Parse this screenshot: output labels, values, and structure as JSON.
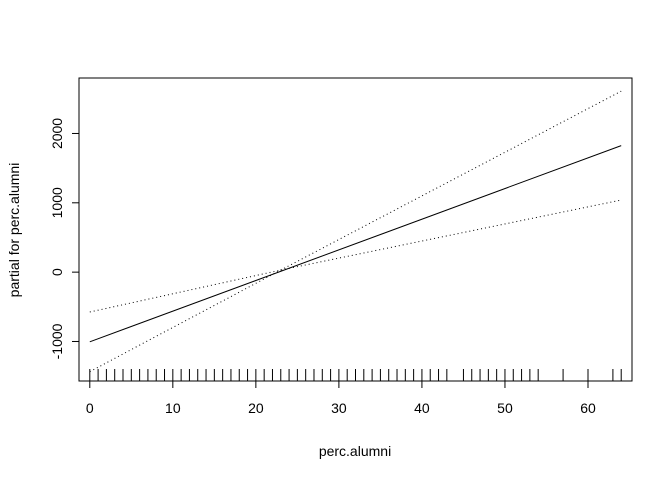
{
  "chart_data": {
    "type": "line",
    "title": "",
    "xlabel": "perc.alumni",
    "ylabel": "partial for perc.alumni",
    "xlim": [
      -1.3,
      65.3
    ],
    "ylim": [
      -1570,
      2800
    ],
    "xticks": [
      0,
      10,
      20,
      30,
      40,
      50,
      60
    ],
    "yticks": [
      -1000,
      0,
      1000,
      2000
    ],
    "series": [
      {
        "name": "fit",
        "style": "solid",
        "x": [
          0,
          64
        ],
        "y": [
          -1005,
          1825
        ]
      },
      {
        "name": "upper band",
        "style": "dotted",
        "x": [
          0,
          23,
          64
        ],
        "y": [
          -575,
          30,
          1040
        ]
      },
      {
        "name": "lower band",
        "style": "dotted",
        "x": [
          0,
          23,
          64
        ],
        "y": [
          -1435,
          30,
          2610
        ]
      }
    ],
    "rug": [
      0,
      1,
      2,
      3,
      4,
      5,
      6,
      7,
      8,
      9,
      10,
      11,
      12,
      13,
      14,
      15,
      16,
      17,
      18,
      19,
      20,
      21,
      22,
      23,
      24,
      25,
      26,
      27,
      28,
      29,
      30,
      31,
      32,
      33,
      34,
      35,
      36,
      37,
      38,
      39,
      40,
      41,
      42,
      43,
      45,
      46,
      47,
      48,
      49,
      50,
      51,
      52,
      53,
      54,
      57,
      60,
      63,
      64
    ]
  }
}
